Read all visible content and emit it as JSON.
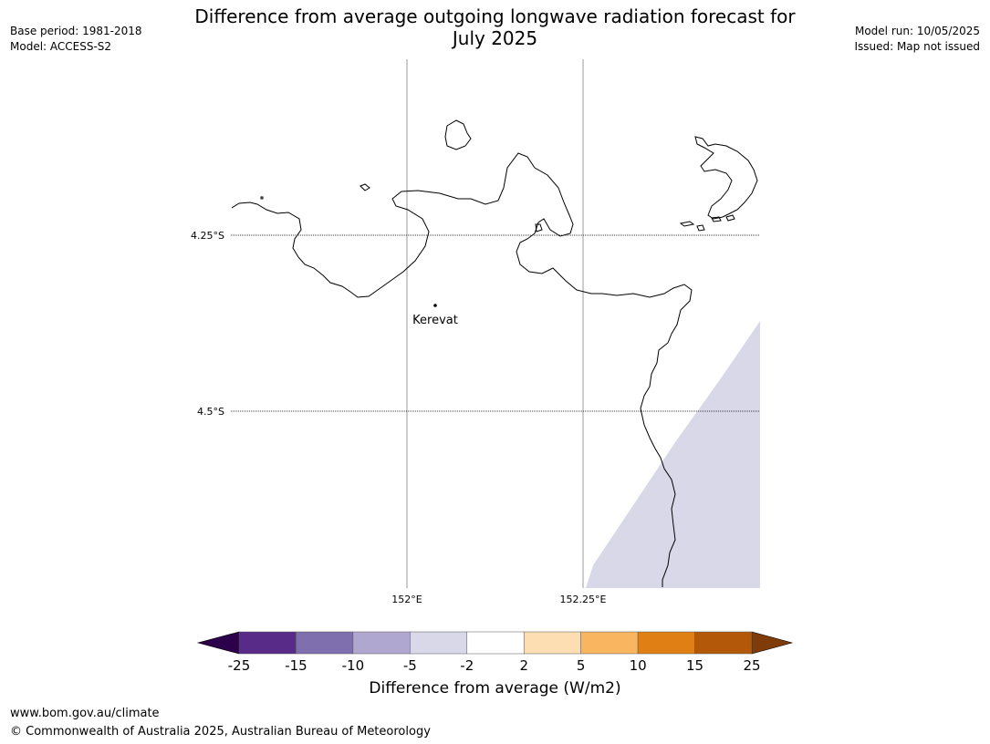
{
  "title": {
    "line1": "Difference from average outgoing longwave radiation forecast for",
    "line2": "July 2025"
  },
  "meta_left": {
    "base_period": "Base period: 1981-2018",
    "model": "Model: ACCESS-S2"
  },
  "meta_right": {
    "model_run": "Model run: 10/05/2025",
    "issued": "Issued: Map not issued"
  },
  "map": {
    "latitude_labels": [
      "4.25°S",
      "4.5°S"
    ],
    "longitude_labels": [
      "152°E",
      "152.25°E"
    ],
    "place": {
      "name": "Kerevat"
    },
    "anomaly_fill_color": "#d8d8e9",
    "coastline_color": "#000000"
  },
  "colorbar": {
    "label": "Difference from average (W/m2)",
    "ticks": [
      "-25",
      "-15",
      "-10",
      "-5",
      "-2",
      "2",
      "5",
      "10",
      "15",
      "25"
    ],
    "colors": [
      "#592b88",
      "#806fae",
      "#b0a7d1",
      "#d8d8e9",
      "#ffffff",
      "#fddeb3",
      "#f9b55f",
      "#df7f14",
      "#b35808"
    ],
    "under_color": "#2d004b",
    "over_color": "#7f3b08"
  },
  "footer": {
    "url": "www.bom.gov.au/climate",
    "copyright": "© Commonwealth of Australia 2025, Australian Bureau of Meteorology"
  }
}
